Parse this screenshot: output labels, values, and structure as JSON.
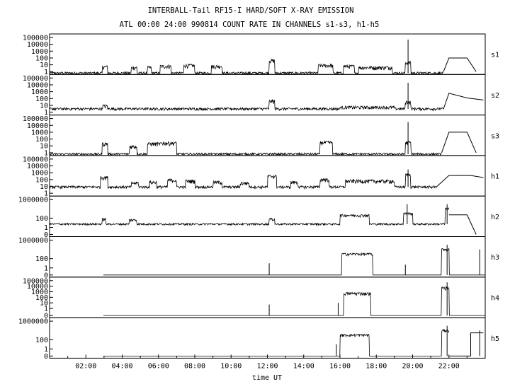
{
  "chart_data": {
    "type": "line",
    "title": "INTERBALL-Tail RF15-I HARD/SOFT X-RAY EMISSION",
    "subtitle": "ATL 00:00 24:00 990814  COUNT RATE IN CHANNELS s1-s3, h1-h5",
    "xlabel": "time UT",
    "x_ticks": [
      "02:00",
      "04:00",
      "06:00",
      "08:00",
      "10:00",
      "12:00",
      "14:00",
      "16:00",
      "18:00",
      "20:00",
      "22:00"
    ],
    "xlim_hours": [
      0,
      24
    ],
    "yscale": "log",
    "panels": [
      {
        "name": "s1",
        "y_ticks": [
          "100000",
          "10000",
          "1000",
          "100",
          "10",
          "1"
        ],
        "baseline": 0.6,
        "bursts": [
          [
            2.9,
            3.2,
            5
          ],
          [
            4.5,
            4.8,
            4
          ],
          [
            5.4,
            5.6,
            4
          ],
          [
            6.1,
            6.7,
            6
          ],
          [
            7.4,
            8.0,
            8
          ],
          [
            8.9,
            9.5,
            6
          ],
          [
            12.1,
            12.4,
            40
          ],
          [
            14.8,
            15.6,
            8
          ],
          [
            16.2,
            16.8,
            6
          ],
          [
            17.0,
            18.9,
            4
          ],
          [
            19.6,
            19.9,
            20
          ]
        ],
        "spikes": [
          [
            19.75,
            50000
          ]
        ],
        "tail": [
          [
            21.7,
            1
          ],
          [
            22.0,
            100
          ],
          [
            23.0,
            100
          ],
          [
            23.5,
            1
          ]
        ]
      },
      {
        "name": "s2",
        "y_ticks": [
          "100000",
          "10000",
          "1000",
          "100",
          "10",
          "1"
        ],
        "baseline": 3,
        "bursts": [
          [
            2.9,
            3.2,
            8
          ],
          [
            12.1,
            12.4,
            40
          ],
          [
            16.0,
            19.0,
            5
          ],
          [
            19.6,
            19.9,
            30
          ]
        ],
        "spikes": [
          [
            19.75,
            20000
          ]
        ],
        "tail": [
          [
            21.7,
            3
          ],
          [
            22.0,
            600
          ],
          [
            23.0,
            120
          ],
          [
            23.9,
            60
          ]
        ]
      },
      {
        "name": "s3",
        "y_ticks": [
          "100000",
          "10000",
          "1000",
          "100",
          "10",
          "1"
        ],
        "baseline": 0.6,
        "bursts": [
          [
            2.9,
            3.2,
            20
          ],
          [
            4.4,
            4.8,
            8
          ],
          [
            5.4,
            6.2,
            20
          ],
          [
            6.1,
            7.0,
            25
          ],
          [
            14.9,
            15.6,
            30
          ],
          [
            19.6,
            19.9,
            30
          ]
        ],
        "spikes": [
          [
            19.75,
            30000
          ]
        ],
        "tail": [
          [
            21.6,
            1
          ],
          [
            22.0,
            1000
          ],
          [
            23.0,
            1000
          ],
          [
            23.5,
            1
          ]
        ]
      },
      {
        "name": "h1",
        "y_ticks": [
          "100000",
          "10000",
          "1000",
          "100",
          "10",
          "1"
        ],
        "baseline": 8,
        "bursts": [
          [
            2.8,
            3.2,
            200
          ],
          [
            4.5,
            4.9,
            30
          ],
          [
            5.5,
            5.9,
            40
          ],
          [
            6.5,
            7.0,
            80
          ],
          [
            7.5,
            8.0,
            60
          ],
          [
            9.0,
            9.5,
            40
          ],
          [
            10.5,
            11.0,
            30
          ],
          [
            12.0,
            12.5,
            300
          ],
          [
            13.3,
            13.7,
            40
          ],
          [
            14.9,
            15.4,
            100
          ],
          [
            16.3,
            19.0,
            60
          ],
          [
            19.6,
            19.9,
            500
          ]
        ],
        "spikes": [
          [
            19.75,
            3000
          ]
        ],
        "tail": [
          [
            21.3,
            8
          ],
          [
            22.0,
            400
          ],
          [
            23.2,
            400
          ],
          [
            23.9,
            200
          ]
        ]
      },
      {
        "name": "h2",
        "y_ticks": [
          "1000000",
          "100",
          "1",
          "0"
        ],
        "baseline": 5,
        "bursts": [
          [
            2.9,
            3.1,
            60
          ],
          [
            4.4,
            4.8,
            40
          ],
          [
            12.1,
            12.4,
            60
          ],
          [
            16.0,
            17.6,
            400
          ],
          [
            19.5,
            20.0,
            1000
          ],
          [
            21.8,
            22.0,
            10000
          ]
        ],
        "spikes": [
          [
            19.7,
            100000
          ],
          [
            21.9,
            100000
          ]
        ],
        "tail": [
          [
            22.0,
            500
          ],
          [
            23.0,
            500
          ],
          [
            23.5,
            0
          ]
        ]
      },
      {
        "name": "h3",
        "y_ticks": [
          "1000000",
          "100",
          "1",
          "0"
        ],
        "baseline": 0,
        "bursts": [
          [
            16.1,
            17.8,
            1000
          ],
          [
            21.6,
            22.0,
            10000
          ]
        ],
        "spikes": [
          [
            12.1,
            10
          ],
          [
            19.6,
            5
          ],
          [
            21.9,
            100000
          ],
          [
            23.7,
            10000
          ]
        ],
        "tail": []
      },
      {
        "name": "h4",
        "y_ticks": [
          "100000",
          "10000",
          "1000",
          "100",
          "10",
          "1",
          "0"
        ],
        "baseline": 0,
        "bursts": [
          [
            16.2,
            17.7,
            500
          ],
          [
            21.6,
            22.0,
            5000
          ]
        ],
        "spikes": [
          [
            12.1,
            5
          ],
          [
            15.9,
            10
          ],
          [
            21.9,
            50000
          ]
        ],
        "tail": []
      },
      {
        "name": "h5",
        "y_ticks": [
          "1000000",
          "100",
          "1",
          "0"
        ],
        "baseline": 0,
        "bursts": [
          [
            16.0,
            17.6,
            1000
          ],
          [
            21.6,
            22.0,
            10000
          ]
        ],
        "spikes": [
          [
            15.8,
            10
          ],
          [
            21.9,
            100000
          ],
          [
            23.7,
            10000
          ]
        ],
        "tail": [
          [
            22.0,
            0
          ],
          [
            23.2,
            0
          ],
          [
            23.2,
            3000
          ],
          [
            23.9,
            3000
          ]
        ]
      }
    ]
  }
}
